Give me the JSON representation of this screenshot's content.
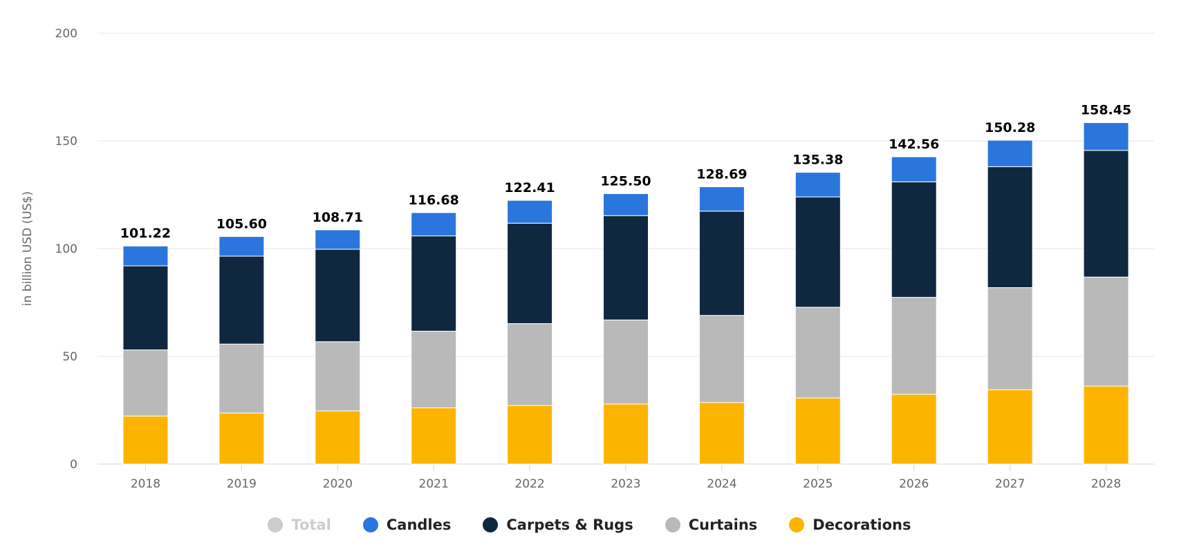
{
  "chart_data": {
    "type": "bar",
    "stacked": true,
    "title": "",
    "xlabel": "",
    "ylabel": "in billion USD (US$)",
    "ylim": [
      0,
      200
    ],
    "yticks": [
      0,
      50,
      100,
      150,
      200
    ],
    "grid": true,
    "legend_position": "bottom",
    "categories": [
      "2018",
      "2019",
      "2020",
      "2021",
      "2022",
      "2023",
      "2024",
      "2025",
      "2026",
      "2027",
      "2028"
    ],
    "totals": [
      "101.22",
      "105.60",
      "108.71",
      "116.68",
      "122.41",
      "125.50",
      "128.69",
      "135.38",
      "142.56",
      "150.28",
      "158.45"
    ],
    "series": [
      {
        "name": "Decorations",
        "color": "#fdb400",
        "values": [
          22.3,
          23.7,
          24.7,
          26.1,
          27.2,
          27.9,
          28.6,
          30.7,
          32.4,
          34.5,
          36.2
        ]
      },
      {
        "name": "Curtains",
        "color": "#b9b9b9",
        "values": [
          30.7,
          32.0,
          32.1,
          35.6,
          38.0,
          39.0,
          40.4,
          42.1,
          45.0,
          47.4,
          50.6
        ]
      },
      {
        "name": "Carpets & Rugs",
        "color": "#0f2840",
        "values": [
          39.0,
          40.8,
          42.9,
          44.2,
          46.6,
          48.4,
          48.4,
          51.2,
          53.6,
          56.1,
          58.8
        ]
      },
      {
        "name": "Candles",
        "color": "#2a76dd",
        "values": [
          9.2,
          9.1,
          9.0,
          10.8,
          10.6,
          10.2,
          11.3,
          11.4,
          11.6,
          12.3,
          12.85
        ]
      }
    ],
    "legend": [
      {
        "name": "Total",
        "color": "#cccccc",
        "disabled": true
      },
      {
        "name": "Candles",
        "color": "#2a76dd"
      },
      {
        "name": "Carpets & Rugs",
        "color": "#0f2840"
      },
      {
        "name": "Curtains",
        "color": "#b9b9b9"
      },
      {
        "name": "Decorations",
        "color": "#fdb400"
      }
    ]
  }
}
